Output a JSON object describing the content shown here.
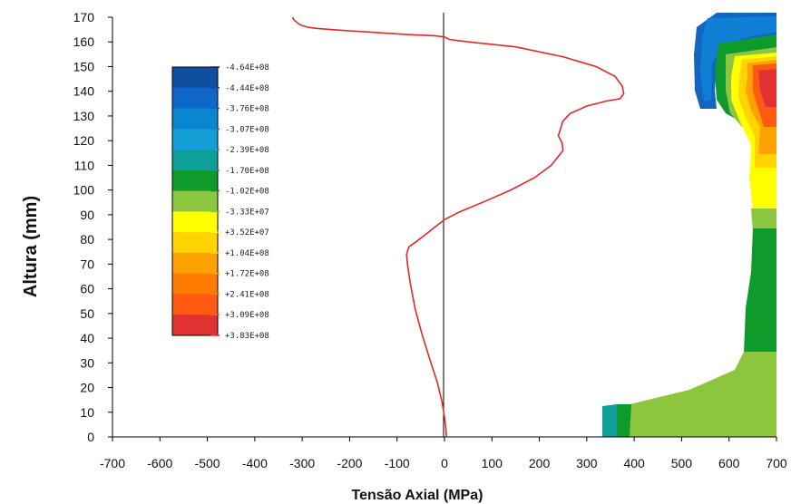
{
  "chart_data": {
    "type": "line",
    "title": "",
    "xlabel": "Tensão Axial (MPa)",
    "ylabel": "Altura (mm)",
    "xlim": [
      -700,
      700
    ],
    "ylim": [
      0,
      170
    ],
    "x_ticks": [
      "-700",
      "-600",
      "-500",
      "-400",
      "-300",
      "-200",
      "-100",
      "0",
      "100",
      "200",
      "300",
      "400",
      "500",
      "600",
      "700"
    ],
    "y_ticks": [
      "0",
      "10",
      "20",
      "30",
      "40",
      "50",
      "60",
      "70",
      "80",
      "90",
      "100",
      "110",
      "120",
      "130",
      "140",
      "150",
      "160",
      "170"
    ],
    "grid": false,
    "series": [
      {
        "color": "#e0282b",
        "x": [
          -320,
          -318,
          -305,
          -290,
          -270,
          -240,
          -200,
          -160,
          -120,
          -80,
          -20,
          0,
          10,
          50,
          150,
          250,
          320,
          360,
          375,
          378,
          370,
          340,
          300,
          265,
          250,
          245,
          240,
          248,
          250,
          225,
          190,
          140,
          80,
          30,
          0,
          -20,
          -40,
          -60,
          -75,
          -80,
          -78,
          -72,
          -62,
          -48,
          -32,
          -15,
          -5,
          0,
          3,
          4
        ],
        "y": [
          170,
          169,
          167,
          166,
          165.5,
          165,
          164.5,
          164,
          163.5,
          163,
          162.5,
          162,
          161,
          160,
          158,
          154,
          150,
          146,
          142,
          139,
          137,
          136,
          134,
          131,
          128,
          125,
          122,
          119,
          116,
          110,
          105,
          100,
          95,
          91,
          88,
          85,
          82,
          79,
          77,
          74,
          70,
          62,
          52,
          42,
          32,
          22,
          14,
          8,
          3,
          0
        ]
      }
    ],
    "legend": {
      "placement": "upper-left",
      "entries": [
        {
          "label": "-4.64E+08",
          "color": "#2c0f6e"
        },
        {
          "label": "-4.44E+08",
          "color": "#0f4f9e"
        },
        {
          "label": "-3.76E+08",
          "color": "#0d66c8"
        },
        {
          "label": "-3.07E+08",
          "color": "#0a86d0"
        },
        {
          "label": "-2.39E+08",
          "color": "#14a0d6"
        },
        {
          "label": "-1.70E+08",
          "color": "#0f9f9a"
        },
        {
          "label": "-1.02E+08",
          "color": "#0e9b2c"
        },
        {
          "label": "-3.33E+07",
          "color": "#8cc63f"
        },
        {
          "label": "+3.52E+07",
          "color": "#ffff00"
        },
        {
          "label": "+1.04E+08",
          "color": "#ffd400"
        },
        {
          "label": "+1.72E+08",
          "color": "#ffa100"
        },
        {
          "label": "+2.41E+08",
          "color": "#ff7a00"
        },
        {
          "label": "+3.09E+08",
          "color": "#ff5a12"
        },
        {
          "label": "+3.83E+08",
          "color": "#e03232"
        }
      ]
    },
    "contour_image": {
      "description_colors": [
        "#1f5fb0",
        "#0e7fd4",
        "#0e9b2c",
        "#8cc63f",
        "#ffff00",
        "#ffa100",
        "#ff5a12",
        "#e03232",
        "#0f9f9a"
      ]
    }
  }
}
